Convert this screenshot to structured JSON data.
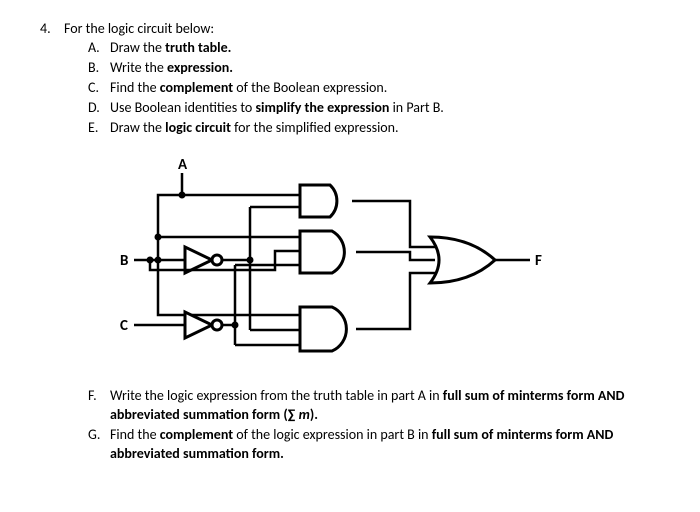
{
  "question": {
    "number": "4.",
    "stem": "For the logic circuit below:",
    "items": [
      {
        "letter": "A.",
        "html": "Draw the <b>truth table.</b>"
      },
      {
        "letter": "B.",
        "html": "Write the <b>expression.</b>"
      },
      {
        "letter": "C.",
        "html": "Find the <b>complement</b> of the Boolean expression."
      },
      {
        "letter": "D.",
        "html": "Use Boolean identities to <b>simplify the expression</b> in Part B."
      },
      {
        "letter": "E.",
        "html": "Draw the <b>logic circuit</b> for the simplified expression."
      }
    ],
    "bottom_items": [
      {
        "letter": "F.",
        "html": "Write the logic expression from the truth table in part A in <b>full sum of minterms form AND abbreviated summation form (∑ <i>m</i>).</b>"
      },
      {
        "letter": "G.",
        "html": "Find the <b>complement</b> of the logic expression in part B in <b>full sum of minterms form AND abbreviated summation form.</b>"
      }
    ]
  },
  "circuit": {
    "inputs": [
      "A",
      "B",
      "C"
    ],
    "output": "F"
  }
}
